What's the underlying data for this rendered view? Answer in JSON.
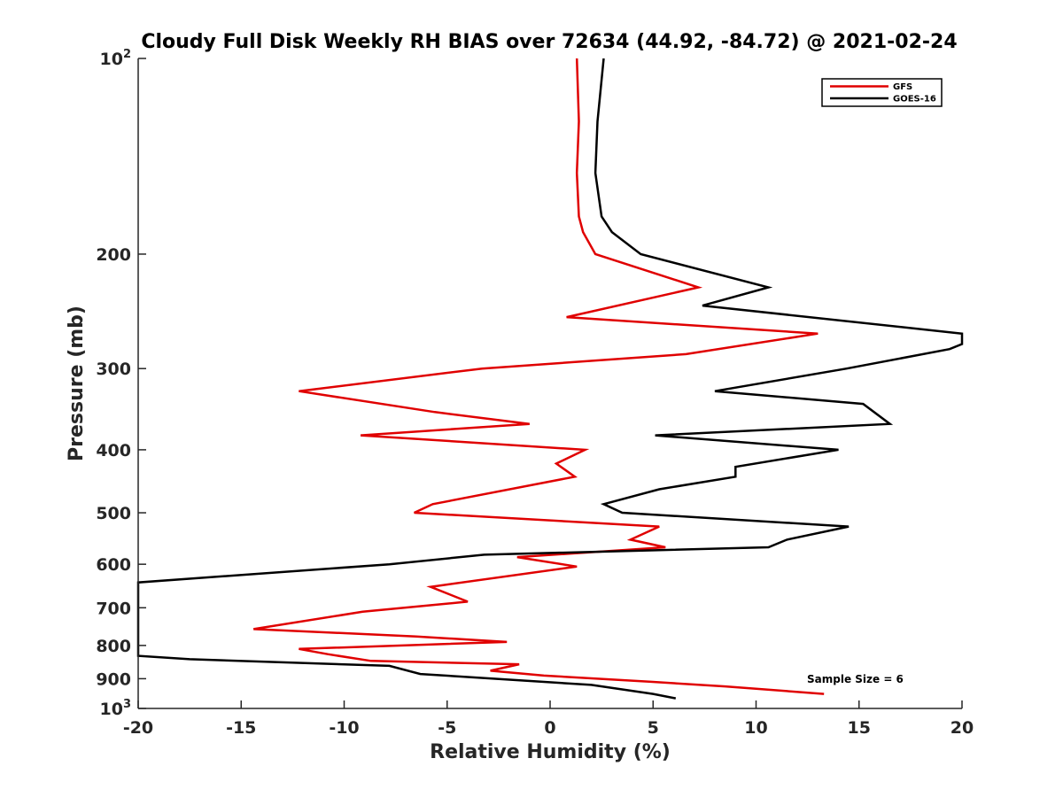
{
  "chart_data": {
    "type": "line",
    "title": "Cloudy Full Disk Weekly RH BIAS over 72634 (44.92, -84.72) @ 2021-02-24",
    "xlabel": "Relative Humidity (%)",
    "ylabel": "Pressure (mb)",
    "xlim": [
      -20,
      20
    ],
    "ylim": [
      100,
      1000
    ],
    "yscale": "log",
    "yreversed": true,
    "grid": false,
    "legend_position": "top-right",
    "x_ticks": [
      -20,
      -15,
      -10,
      -5,
      0,
      5,
      10,
      15,
      20
    ],
    "x_tick_labels": [
      "-20",
      "-15",
      "-10",
      "-5",
      "0",
      "5",
      "10",
      "15",
      "20"
    ],
    "y_ticks": [
      {
        "value": 100,
        "base": "10",
        "exp": "2"
      },
      {
        "value": 200,
        "label": "200"
      },
      {
        "value": 300,
        "label": "300"
      },
      {
        "value": 400,
        "label": "400"
      },
      {
        "value": 500,
        "label": "500"
      },
      {
        "value": 600,
        "label": "600"
      },
      {
        "value": 700,
        "label": "700"
      },
      {
        "value": 800,
        "label": "800"
      },
      {
        "value": 900,
        "label": "900"
      },
      {
        "value": 1000,
        "base": "10",
        "exp": "3"
      }
    ],
    "annotation": "Sample Size = 6",
    "series": [
      {
        "name": "GFS",
        "color": "#e00000",
        "points": [
          {
            "x": 1.3,
            "y": 100
          },
          {
            "x": 1.4,
            "y": 125
          },
          {
            "x": 1.3,
            "y": 150
          },
          {
            "x": 1.4,
            "y": 175
          },
          {
            "x": 1.6,
            "y": 185
          },
          {
            "x": 2.2,
            "y": 200
          },
          {
            "x": 7.2,
            "y": 225
          },
          {
            "x": 0.8,
            "y": 250
          },
          {
            "x": 13.0,
            "y": 265
          },
          {
            "x": 6.6,
            "y": 285
          },
          {
            "x": -3.3,
            "y": 300
          },
          {
            "x": -12.2,
            "y": 325
          },
          {
            "x": -5.6,
            "y": 350
          },
          {
            "x": -1.0,
            "y": 365
          },
          {
            "x": -9.2,
            "y": 380
          },
          {
            "x": 1.7,
            "y": 400
          },
          {
            "x": 0.3,
            "y": 420
          },
          {
            "x": 1.2,
            "y": 440
          },
          {
            "x": -5.7,
            "y": 485
          },
          {
            "x": -6.6,
            "y": 500
          },
          {
            "x": 5.3,
            "y": 525
          },
          {
            "x": 3.9,
            "y": 550
          },
          {
            "x": 5.6,
            "y": 565
          },
          {
            "x": -1.6,
            "y": 585
          },
          {
            "x": 1.3,
            "y": 605
          },
          {
            "x": -5.8,
            "y": 650
          },
          {
            "x": -4.0,
            "y": 685
          },
          {
            "x": -9.1,
            "y": 710
          },
          {
            "x": -14.4,
            "y": 755
          },
          {
            "x": -6.5,
            "y": 775
          },
          {
            "x": -2.1,
            "y": 790
          },
          {
            "x": -12.2,
            "y": 810
          },
          {
            "x": -10.8,
            "y": 825
          },
          {
            "x": -8.7,
            "y": 845
          },
          {
            "x": -1.5,
            "y": 855
          },
          {
            "x": -2.9,
            "y": 875
          },
          {
            "x": -0.3,
            "y": 890
          },
          {
            "x": 4.9,
            "y": 910
          },
          {
            "x": 8.5,
            "y": 925
          },
          {
            "x": 13.3,
            "y": 950
          }
        ]
      },
      {
        "name": "GOES-16",
        "color": "#000000",
        "points": [
          {
            "x": 2.6,
            "y": 100
          },
          {
            "x": 2.3,
            "y": 125
          },
          {
            "x": 2.2,
            "y": 150
          },
          {
            "x": 2.5,
            "y": 175
          },
          {
            "x": 3.0,
            "y": 185
          },
          {
            "x": 4.4,
            "y": 200
          },
          {
            "x": 10.6,
            "y": 225
          },
          {
            "x": 7.4,
            "y": 240
          },
          {
            "x": 20.0,
            "y": 265
          },
          {
            "x": 20.0,
            "y": 275
          },
          {
            "x": 19.4,
            "y": 280
          },
          {
            "x": 14.4,
            "y": 300
          },
          {
            "x": 8.0,
            "y": 325
          },
          {
            "x": 15.2,
            "y": 340
          },
          {
            "x": 16.5,
            "y": 365
          },
          {
            "x": 5.1,
            "y": 380
          },
          {
            "x": 14.0,
            "y": 400
          },
          {
            "x": 9.0,
            "y": 425
          },
          {
            "x": 9.0,
            "y": 440
          },
          {
            "x": 5.3,
            "y": 460
          },
          {
            "x": 2.6,
            "y": 485
          },
          {
            "x": 3.5,
            "y": 500
          },
          {
            "x": 14.5,
            "y": 525
          },
          {
            "x": 11.5,
            "y": 550
          },
          {
            "x": 10.6,
            "y": 565
          },
          {
            "x": -3.2,
            "y": 580
          },
          {
            "x": -7.8,
            "y": 600
          },
          {
            "x": -20.0,
            "y": 640
          },
          {
            "x": -20.0,
            "y": 830
          },
          {
            "x": -17.5,
            "y": 840
          },
          {
            "x": -7.8,
            "y": 860
          },
          {
            "x": -6.3,
            "y": 885
          },
          {
            "x": 2.0,
            "y": 920
          },
          {
            "x": 5.0,
            "y": 950
          },
          {
            "x": 6.1,
            "y": 965
          }
        ]
      }
    ]
  }
}
